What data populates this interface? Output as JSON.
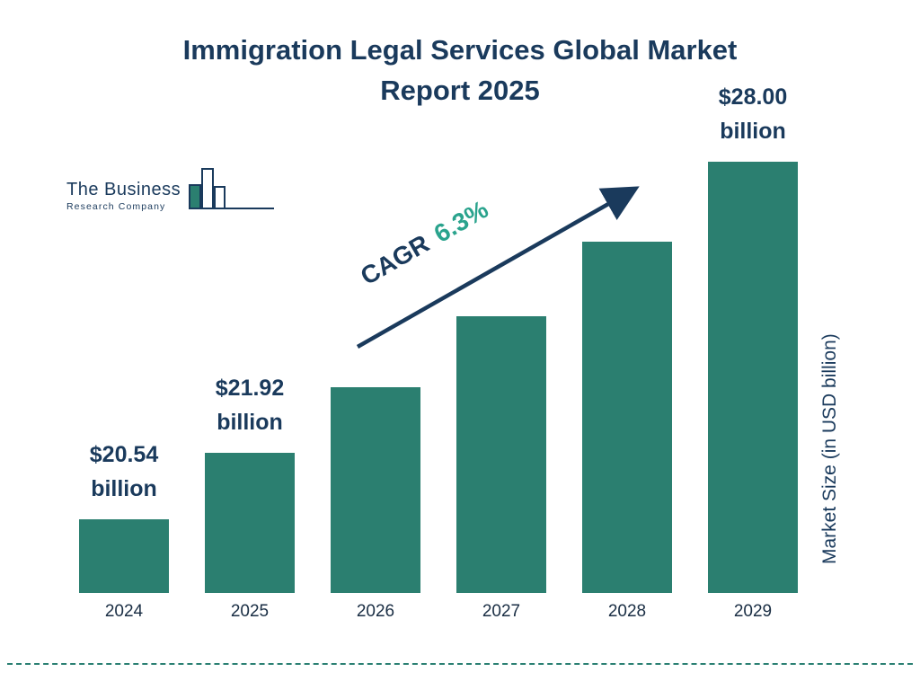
{
  "header": {
    "title_line1": "Immigration Legal Services Global Market",
    "title_line2": "Report 2025"
  },
  "logo": {
    "name_line1": "The Business",
    "name_line2": "Research Company"
  },
  "cagr": {
    "label": "CAGR",
    "value": "6.3%"
  },
  "colors": {
    "bar": "#2b7f70",
    "navy": "#1a3a5c",
    "cagr_teal": "#2aa38d"
  },
  "chart_data": {
    "type": "bar",
    "title": "Immigration Legal Services Global Market Report 2025",
    "categories": [
      "2024",
      "2025",
      "2026",
      "2027",
      "2028",
      "2029"
    ],
    "values": [
      20.54,
      21.92,
      23.3,
      24.77,
      26.33,
      28.0
    ],
    "ylabel": "Market Size (in USD billion)",
    "xlabel": "",
    "ylim": [
      19,
      29
    ],
    "legend": "none",
    "grid": "off",
    "cagr": "6.3%",
    "points": [
      {
        "year": "2024",
        "value": 20.54,
        "label1": "$20.54",
        "label2": "billion"
      },
      {
        "year": "2025",
        "value": 21.92,
        "label1": "$21.92",
        "label2": "billion"
      },
      {
        "year": "2026",
        "value": 23.3,
        "label1": "",
        "label2": ""
      },
      {
        "year": "2027",
        "value": 24.77,
        "label1": "",
        "label2": ""
      },
      {
        "year": "2028",
        "value": 26.33,
        "label1": "",
        "label2": ""
      },
      {
        "year": "2029",
        "value": 28.0,
        "label1": "$28.00",
        "label2": "billion"
      }
    ]
  }
}
